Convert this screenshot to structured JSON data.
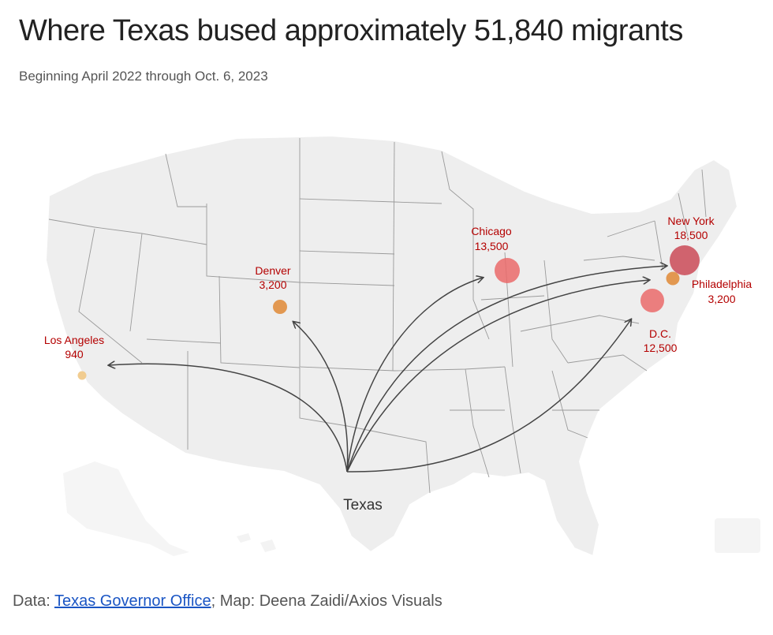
{
  "header": {
    "title": "Where Texas bused approximately 51,840 migrants",
    "subtitle": "Beginning April 2022 through Oct. 6, 2023"
  },
  "footer": {
    "prefix": "Data: ",
    "link_text": "Texas Governor Office",
    "suffix": "; Map: Deena Zaidi/Axios Visuals"
  },
  "origin": {
    "name": "Texas"
  },
  "destinations": [
    {
      "id": "los-angeles",
      "name": "Los Angeles",
      "count": "940",
      "color": "#f0c98a"
    },
    {
      "id": "denver",
      "name": "Denver",
      "count": "3,200",
      "color": "#e08e3f"
    },
    {
      "id": "chicago",
      "name": "Chicago",
      "count": "13,500",
      "color": "#ea6a6a"
    },
    {
      "id": "new-york",
      "name": "New York",
      "count": "18,500",
      "color": "#d04a57"
    },
    {
      "id": "philadelphia",
      "name": "Philadelphia",
      "count": "3,200",
      "color": "#e08e3f"
    },
    {
      "id": "dc",
      "name": "D.C.",
      "count": "12,500",
      "color": "#ea6a6a"
    }
  ],
  "colors": {
    "land": "#eeeeee",
    "border": "#ffffff",
    "state_line": "#9a9a9a",
    "arrow": "#444444",
    "label": "#b40000"
  }
}
